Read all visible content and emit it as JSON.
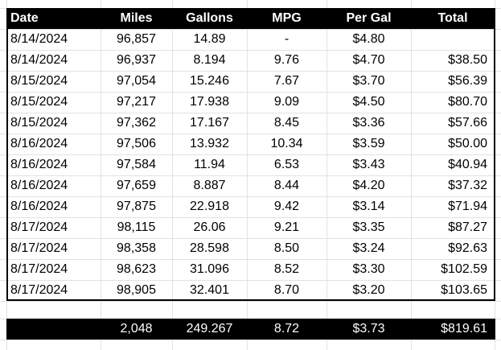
{
  "table": {
    "headers": [
      "Date",
      "Miles",
      "Gallons",
      "MPG",
      "Per Gal",
      "Total"
    ],
    "rows": [
      [
        "8/14/2024",
        "96,857",
        "14.89",
        "-",
        "$4.80",
        ""
      ],
      [
        "8/14/2024",
        "96,937",
        "8.194",
        "9.76",
        "$4.70",
        "$38.50"
      ],
      [
        "8/15/2024",
        "97,054",
        "15.246",
        "7.67",
        "$3.70",
        "$56.39"
      ],
      [
        "8/15/2024",
        "97,217",
        "17.938",
        "9.09",
        "$4.50",
        "$80.70"
      ],
      [
        "8/15/2024",
        "97,362",
        "17.167",
        "8.45",
        "$3.36",
        "$57.66"
      ],
      [
        "8/16/2024",
        "97,506",
        "13.932",
        "10.34",
        "$3.59",
        "$50.00"
      ],
      [
        "8/16/2024",
        "97,584",
        "11.94",
        "6.53",
        "$3.43",
        "$40.94"
      ],
      [
        "8/16/2024",
        "97,659",
        "8.887",
        "8.44",
        "$4.20",
        "$37.32"
      ],
      [
        "8/16/2024",
        "97,875",
        "22.918",
        "9.42",
        "$3.14",
        "$71.94"
      ],
      [
        "8/17/2024",
        "98,115",
        "26.06",
        "9.21",
        "$3.35",
        "$87.27"
      ],
      [
        "8/17/2024",
        "98,358",
        "28.598",
        "8.50",
        "$3.24",
        "$92.63"
      ],
      [
        "8/17/2024",
        "98,623",
        "31.096",
        "8.52",
        "$3.30",
        "$102.59"
      ],
      [
        "8/17/2024",
        "98,905",
        "32.401",
        "8.70",
        "$3.20",
        "$103.65"
      ]
    ],
    "totals": [
      "",
      "2,048",
      "249.267",
      "8.72",
      "$3.73",
      "$819.61"
    ]
  },
  "colors": {
    "header_bg": "#000000",
    "header_text": "#ffffff",
    "gridline": "#e2e2e2",
    "cell_text": "#000000"
  }
}
